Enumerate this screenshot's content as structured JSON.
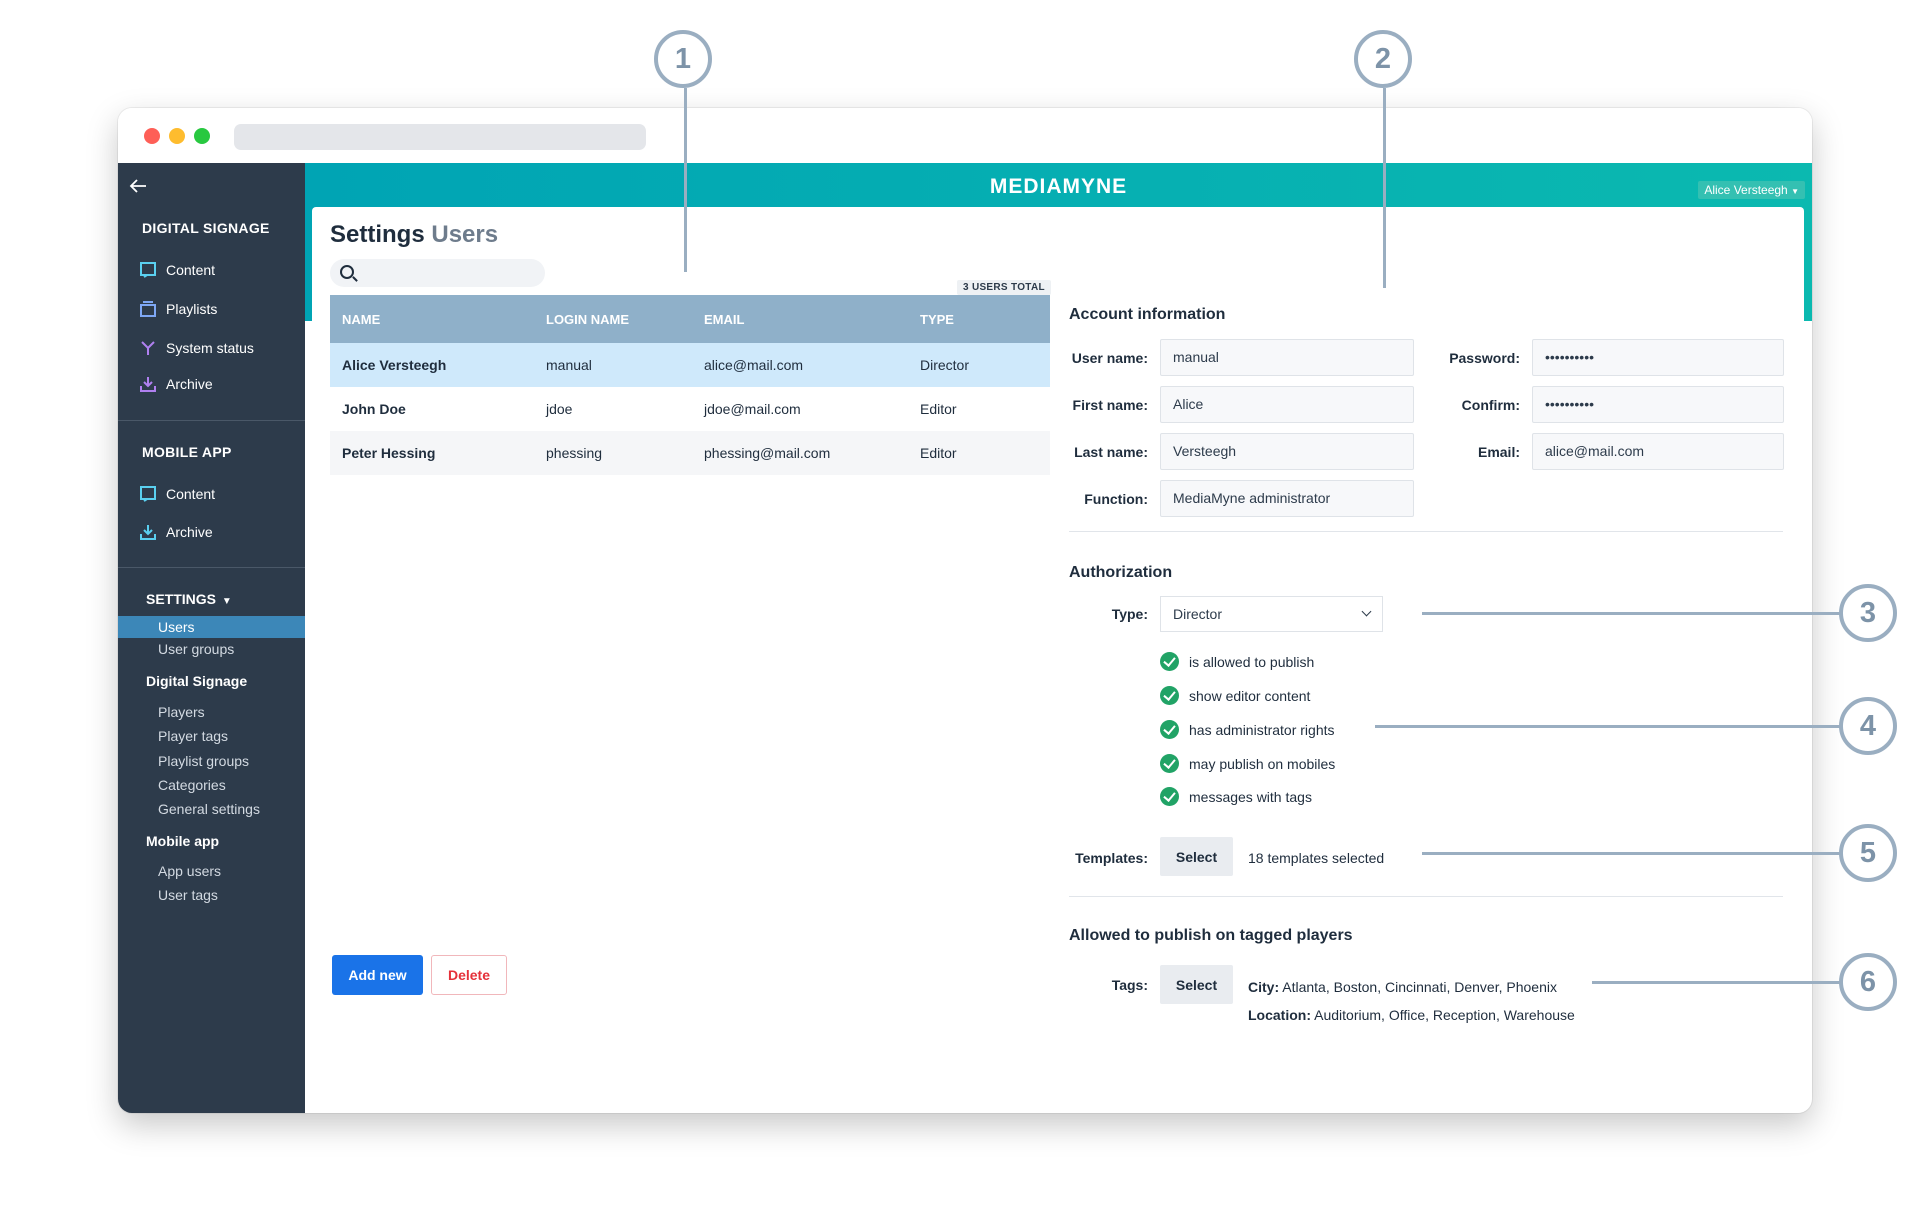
{
  "callouts": [
    "1",
    "2",
    "3",
    "4",
    "5",
    "6"
  ],
  "colors": {
    "sidebar": "#2d3b4b",
    "header": "#00a4b4",
    "selected_row": "#cfe9fb",
    "primary": "#1a73e8",
    "danger": "#e5313a",
    "check": "#21a366"
  },
  "header": {
    "brand": "MEDIAMYNE",
    "user_menu": "Alice Versteegh"
  },
  "sidebar": {
    "digital_signage_title": "DIGITAL SIGNAGE",
    "ds_items": [
      {
        "label": "Content",
        "icon": "content-icon"
      },
      {
        "label": "Playlists",
        "icon": "playlists-icon"
      },
      {
        "label": "System status",
        "icon": "system-status-icon"
      },
      {
        "label": "Archive",
        "icon": "archive-icon"
      }
    ],
    "mobile_app_title": "MOBILE APP",
    "ma_items": [
      {
        "label": "Content",
        "icon": "content-icon"
      },
      {
        "label": "Archive",
        "icon": "archive-icon"
      }
    ],
    "settings_title": "SETTINGS",
    "settings_items": [
      "Users",
      "User groups"
    ],
    "ds_group": "Digital Signage",
    "ds_group_items": [
      "Players",
      "Player tags",
      "Playlist groups",
      "Categories",
      "General settings"
    ],
    "mobile_group": "Mobile app",
    "mobile_group_items": [
      "App users",
      "User tags"
    ]
  },
  "page": {
    "title": "Settings",
    "title_accent": "Users",
    "total_badge": "3 USERS TOTAL"
  },
  "table": {
    "columns": [
      "NAME",
      "LOGIN NAME",
      "EMAIL",
      "TYPE"
    ],
    "rows": [
      [
        "Alice Versteegh",
        "manual",
        "alice@mail.com",
        "Director"
      ],
      [
        "John Doe",
        "jdoe",
        "jdoe@mail.com",
        "Editor"
      ],
      [
        "Peter Hessing",
        "phessing",
        "phessing@mail.com",
        "Editor"
      ]
    ]
  },
  "buttons": {
    "add_new": "Add new",
    "delete": "Delete"
  },
  "account": {
    "heading": "Account information",
    "labels": {
      "user_name": "User name:",
      "first_name": "First name:",
      "last_name": "Last name:",
      "function": "Function:",
      "password": "Password:",
      "confirm": "Confirm:",
      "email": "Email:"
    },
    "values": {
      "user_name": "manual",
      "first_name": "Alice",
      "last_name": "Versteegh",
      "function": "MediaMyne administrator",
      "password": "••••••••••",
      "confirm": "••••••••••",
      "email": "alice@mail.com"
    }
  },
  "authorization": {
    "heading": "Authorization",
    "type_label": "Type:",
    "type_value": "Director",
    "permissions": [
      "is allowed to publish",
      "show editor content",
      "has administrator rights",
      "may publish on mobiles",
      "messages with tags"
    ],
    "templates_label": "Templates:",
    "templates_button": "Select",
    "templates_summary": "18 templates selected"
  },
  "publish": {
    "heading": "Allowed to publish on tagged players",
    "tags_label": "Tags:",
    "tags_button": "Select",
    "city_label": "City:",
    "city_values": "Atlanta, Boston, Cincinnati, Denver, Phoenix",
    "location_label": "Location:",
    "location_values": "Auditorium, Office, Reception, Warehouse"
  }
}
